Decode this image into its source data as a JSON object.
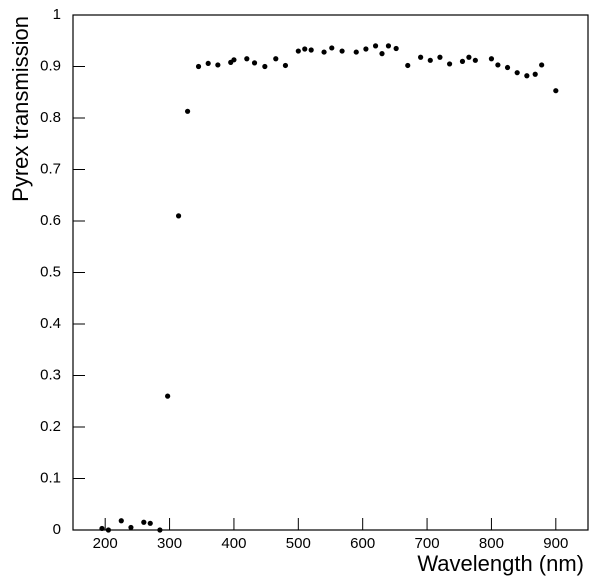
{
  "chart_data": {
    "type": "scatter",
    "xlabel": "Wavelength (nm)",
    "ylabel": "Pyrex transmission",
    "x": [
      195,
      205,
      225,
      240,
      260,
      270,
      285,
      297,
      314,
      328,
      345,
      360,
      375,
      395,
      400,
      420,
      432,
      448,
      465,
      480,
      500,
      510,
      520,
      540,
      552,
      568,
      590,
      605,
      620,
      630,
      640,
      652,
      670,
      690,
      705,
      720,
      735,
      755,
      765,
      775,
      800,
      810,
      825,
      840,
      855,
      868,
      878,
      900
    ],
    "values": [
      0.003,
      0.0,
      0.018,
      0.005,
      0.015,
      0.013,
      0.0,
      0.26,
      0.61,
      0.813,
      0.9,
      0.906,
      0.903,
      0.908,
      0.913,
      0.915,
      0.907,
      0.9,
      0.915,
      0.902,
      0.93,
      0.934,
      0.932,
      0.928,
      0.936,
      0.93,
      0.928,
      0.934,
      0.94,
      0.925,
      0.94,
      0.935,
      0.902,
      0.918,
      0.912,
      0.918,
      0.905,
      0.91,
      0.918,
      0.912,
      0.915,
      0.903,
      0.898,
      0.888,
      0.882,
      0.885,
      0.903,
      0.853
    ],
    "color": "#000000",
    "xlim": [
      150,
      950
    ],
    "xticks": [
      200,
      300,
      400,
      500,
      600,
      700,
      800,
      900
    ],
    "ylim": [
      0,
      1
    ],
    "yticks": [
      0,
      0.1,
      0.2,
      0.3,
      0.4,
      0.5,
      0.6,
      0.7,
      0.8,
      0.9,
      1
    ],
    "grid": false
  }
}
